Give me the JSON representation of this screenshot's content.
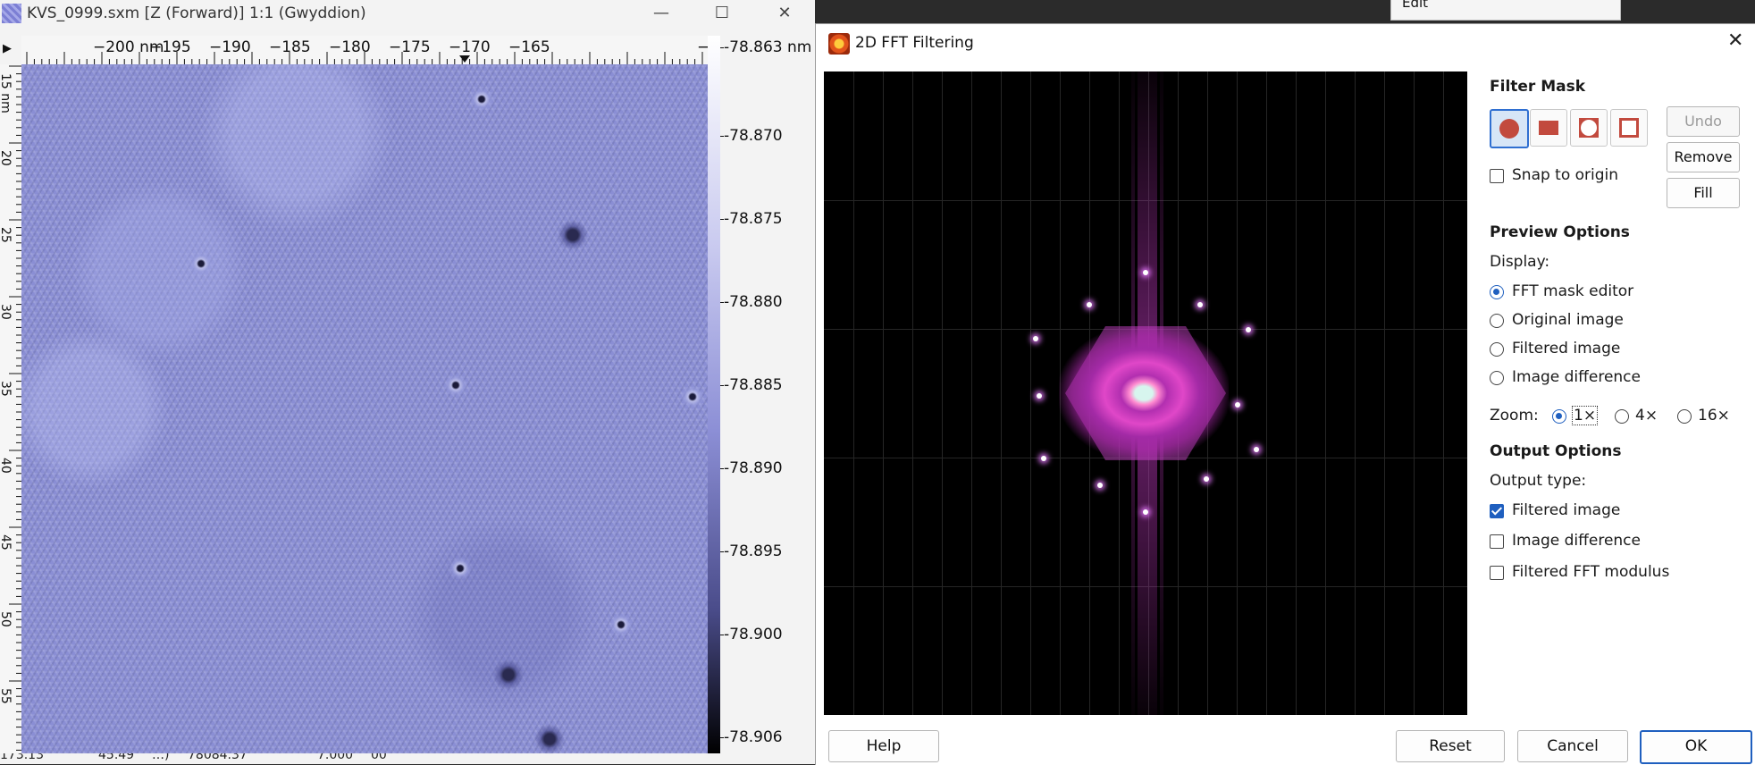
{
  "data_window": {
    "title": "KVS_0999.sxm [Z (Forward)] 1:1 (Gwyddion)",
    "controls": {
      "minimize": "—",
      "maximize": "☐",
      "close": "✕"
    },
    "hruler_labels": [
      "−200 nm",
      "−195",
      "−190",
      "−185",
      "−180",
      "−175",
      "−170",
      "−165",
      "−"
    ],
    "vruler_labels": [
      "15 nm",
      "20",
      "25",
      "30",
      "35",
      "40",
      "45",
      "50",
      "55"
    ],
    "colorbar_labels": [
      "-78.863 nm",
      "-78.870",
      "-78.875",
      "-78.880",
      "-78.885",
      "-78.890",
      "-78.895",
      "-78.900",
      "-78.906"
    ],
    "status": [
      "173.13",
      "45.49",
      "…)",
      "78084.37",
      "7.000",
      "00"
    ]
  },
  "background_menu": {
    "item": "Edit"
  },
  "fft_dialog": {
    "title": "2D FFT Filtering",
    "close": "✕",
    "filter_mask": {
      "heading": "Filter Mask",
      "shapes": [
        "circle-shape",
        "rectangle-shape",
        "inverted-circle-shape",
        "inverted-rectangle-shape"
      ],
      "active_shape": "circle-shape",
      "undo": "Undo",
      "remove": "Remove",
      "fill": "Fill",
      "snap_to_origin": "Snap to origin",
      "snap_checked": false
    },
    "preview": {
      "heading": "Preview Options",
      "display_label": "Display:",
      "options": [
        "FFT mask editor",
        "Original image",
        "Filtered image",
        "Image difference"
      ],
      "selected": "FFT mask editor",
      "zoom_label": "Zoom:",
      "zoom_options": [
        "1×",
        "4×",
        "16×"
      ],
      "zoom_selected": "1×"
    },
    "output": {
      "heading": "Output Options",
      "type_label": "Output type:",
      "options": [
        {
          "label": "Filtered image",
          "checked": true
        },
        {
          "label": "Image difference",
          "checked": false
        },
        {
          "label": "Filtered FFT modulus",
          "checked": false
        }
      ]
    },
    "buttons": {
      "help": "Help",
      "reset": "Reset",
      "cancel": "Cancel",
      "ok": "OK"
    }
  },
  "colors": {
    "accent": "#1f5fbf",
    "mask_shape": "#c24a3e",
    "stm_base": "#8a8ed4"
  }
}
